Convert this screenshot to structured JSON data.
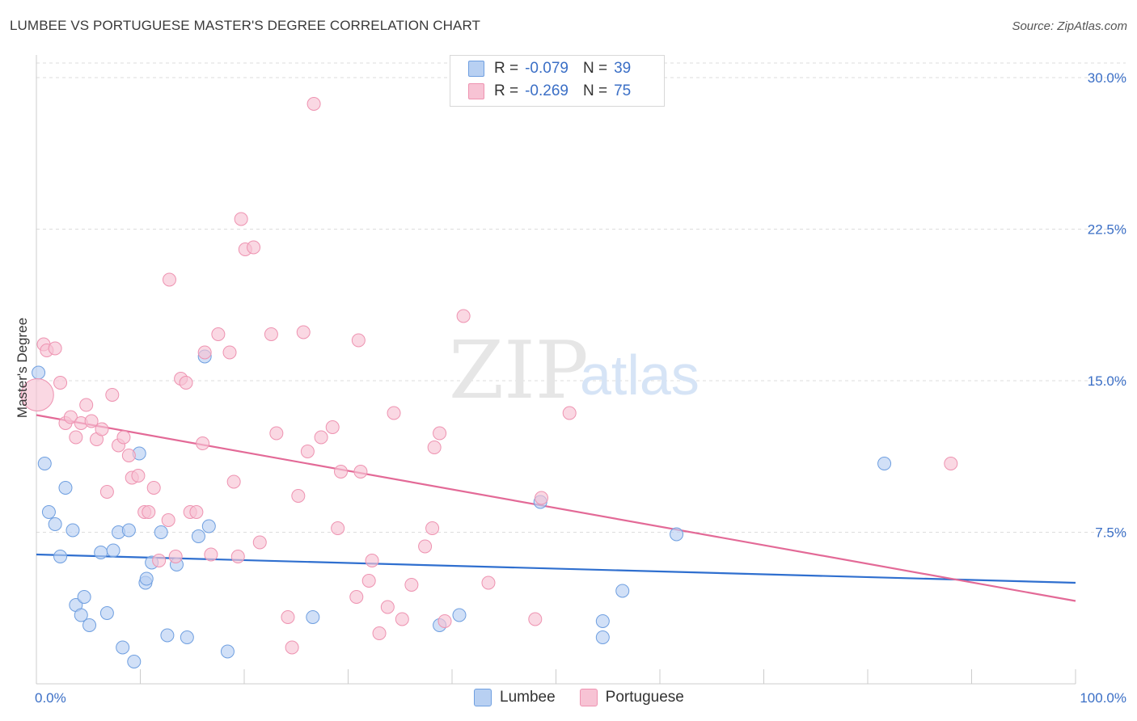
{
  "title": "LUMBEE VS PORTUGUESE MASTER'S DEGREE CORRELATION CHART",
  "source": "Source: ZipAtlas.com",
  "legend": {
    "rows": [
      {
        "series": "Lumbee",
        "r_label": "R =",
        "r_value": "-0.079",
        "n_label": "N =",
        "n_value": "39"
      },
      {
        "series": "Portuguese",
        "r_label": "R =",
        "r_value": "-0.269",
        "n_label": "N =",
        "n_value": "75"
      }
    ]
  },
  "bottom_legend": [
    "Lumbee",
    "Portuguese"
  ],
  "watermark": {
    "zip": "ZIP",
    "atlas": "atlas"
  },
  "colors": {
    "lumbee_fill": "#b8d0f2",
    "lumbee_stroke": "#6f9fe0",
    "lumbee_line": "#2f6fcf",
    "portuguese_fill": "#f7c3d4",
    "portuguese_stroke": "#ee93b1",
    "portuguese_line": "#e36a97",
    "axis_label": "#3b6fc6",
    "grid": "#dddddd"
  },
  "chart_data": {
    "type": "scatter",
    "title": "LUMBEE VS PORTUGUESE MASTER'S DEGREE CORRELATION CHART",
    "xlabel": "",
    "ylabel": "Master's Degree",
    "xlim": [
      0,
      100
    ],
    "ylim": [
      0,
      30
    ],
    "x_tick_labels": [
      {
        "x": 0,
        "label": "0.0%"
      },
      {
        "x": 100,
        "label": "100.0%"
      }
    ],
    "y_ticks": [
      {
        "y": 7.5,
        "label": "7.5%"
      },
      {
        "y": 15,
        "label": "15.0%"
      },
      {
        "y": 22.5,
        "label": "22.5%"
      },
      {
        "y": 30,
        "label": "30.0%"
      }
    ],
    "grid": "horizontal dashed",
    "series": [
      {
        "name": "Lumbee",
        "trend": [
          [
            0,
            6.4
          ],
          [
            100,
            5.0
          ]
        ],
        "points": [
          [
            0.2,
            15.4
          ],
          [
            0.8,
            10.9
          ],
          [
            1.2,
            8.5
          ],
          [
            1.8,
            7.9
          ],
          [
            2.3,
            6.3
          ],
          [
            2.8,
            9.7
          ],
          [
            3.5,
            7.6
          ],
          [
            3.8,
            3.9
          ],
          [
            4.3,
            3.4
          ],
          [
            4.6,
            4.3
          ],
          [
            5.1,
            2.9
          ],
          [
            6.2,
            6.5
          ],
          [
            6.8,
            3.5
          ],
          [
            7.4,
            6.6
          ],
          [
            7.9,
            7.5
          ],
          [
            8.3,
            1.8
          ],
          [
            8.9,
            7.6
          ],
          [
            9.4,
            1.1
          ],
          [
            9.9,
            11.4
          ],
          [
            10.5,
            5.0
          ],
          [
            10.6,
            5.2
          ],
          [
            11.1,
            6.0
          ],
          [
            12.0,
            7.5
          ],
          [
            12.6,
            2.4
          ],
          [
            13.5,
            5.9
          ],
          [
            14.5,
            2.3
          ],
          [
            15.6,
            7.3
          ],
          [
            16.2,
            16.2
          ],
          [
            16.6,
            7.8
          ],
          [
            18.4,
            1.6
          ],
          [
            26.6,
            3.3
          ],
          [
            38.8,
            2.9
          ],
          [
            40.7,
            3.4
          ],
          [
            48.5,
            9.0
          ],
          [
            54.5,
            3.1
          ],
          [
            54.5,
            2.3
          ],
          [
            56.4,
            4.6
          ],
          [
            61.6,
            7.4
          ],
          [
            81.6,
            10.9
          ]
        ]
      },
      {
        "name": "Portuguese",
        "trend": [
          [
            0,
            13.3
          ],
          [
            100,
            4.1
          ]
        ],
        "points": [
          [
            0.1,
            14.3
          ],
          [
            0.7,
            16.8
          ],
          [
            1.0,
            16.5
          ],
          [
            1.8,
            16.6
          ],
          [
            2.3,
            14.9
          ],
          [
            2.8,
            12.9
          ],
          [
            3.3,
            13.2
          ],
          [
            3.8,
            12.2
          ],
          [
            4.3,
            12.9
          ],
          [
            4.8,
            13.8
          ],
          [
            5.3,
            13.0
          ],
          [
            5.8,
            12.1
          ],
          [
            6.3,
            12.6
          ],
          [
            6.8,
            9.5
          ],
          [
            7.3,
            14.3
          ],
          [
            7.9,
            11.8
          ],
          [
            8.4,
            12.2
          ],
          [
            8.9,
            11.3
          ],
          [
            9.2,
            10.2
          ],
          [
            9.8,
            10.3
          ],
          [
            10.4,
            8.5
          ],
          [
            10.8,
            8.5
          ],
          [
            11.3,
            9.7
          ],
          [
            11.8,
            6.1
          ],
          [
            12.7,
            8.1
          ],
          [
            12.8,
            20.0
          ],
          [
            13.4,
            6.3
          ],
          [
            13.9,
            15.1
          ],
          [
            14.4,
            14.9
          ],
          [
            14.8,
            8.5
          ],
          [
            15.4,
            8.5
          ],
          [
            16.0,
            11.9
          ],
          [
            16.2,
            16.4
          ],
          [
            16.8,
            6.4
          ],
          [
            17.5,
            17.3
          ],
          [
            18.6,
            16.4
          ],
          [
            19.0,
            10.0
          ],
          [
            19.4,
            6.3
          ],
          [
            19.7,
            23.0
          ],
          [
            20.1,
            21.5
          ],
          [
            20.9,
            21.6
          ],
          [
            21.5,
            7.0
          ],
          [
            22.6,
            17.3
          ],
          [
            23.1,
            12.4
          ],
          [
            24.2,
            3.3
          ],
          [
            24.6,
            1.8
          ],
          [
            25.2,
            9.3
          ],
          [
            25.7,
            17.4
          ],
          [
            26.1,
            11.5
          ],
          [
            26.7,
            28.7
          ],
          [
            27.4,
            12.2
          ],
          [
            28.5,
            12.7
          ],
          [
            29.0,
            7.7
          ],
          [
            29.3,
            10.5
          ],
          [
            30.8,
            4.3
          ],
          [
            31.0,
            17.0
          ],
          [
            31.2,
            10.5
          ],
          [
            32.0,
            5.1
          ],
          [
            32.3,
            6.1
          ],
          [
            33.0,
            2.5
          ],
          [
            33.8,
            3.8
          ],
          [
            34.4,
            13.4
          ],
          [
            35.2,
            3.2
          ],
          [
            36.1,
            4.9
          ],
          [
            37.4,
            6.8
          ],
          [
            38.1,
            7.7
          ],
          [
            38.3,
            11.7
          ],
          [
            38.8,
            12.4
          ],
          [
            39.3,
            3.1
          ],
          [
            41.1,
            18.2
          ],
          [
            43.5,
            5.0
          ],
          [
            48.0,
            3.2
          ],
          [
            48.6,
            9.2
          ],
          [
            51.3,
            13.4
          ],
          [
            88.0,
            10.9
          ]
        ]
      }
    ]
  }
}
